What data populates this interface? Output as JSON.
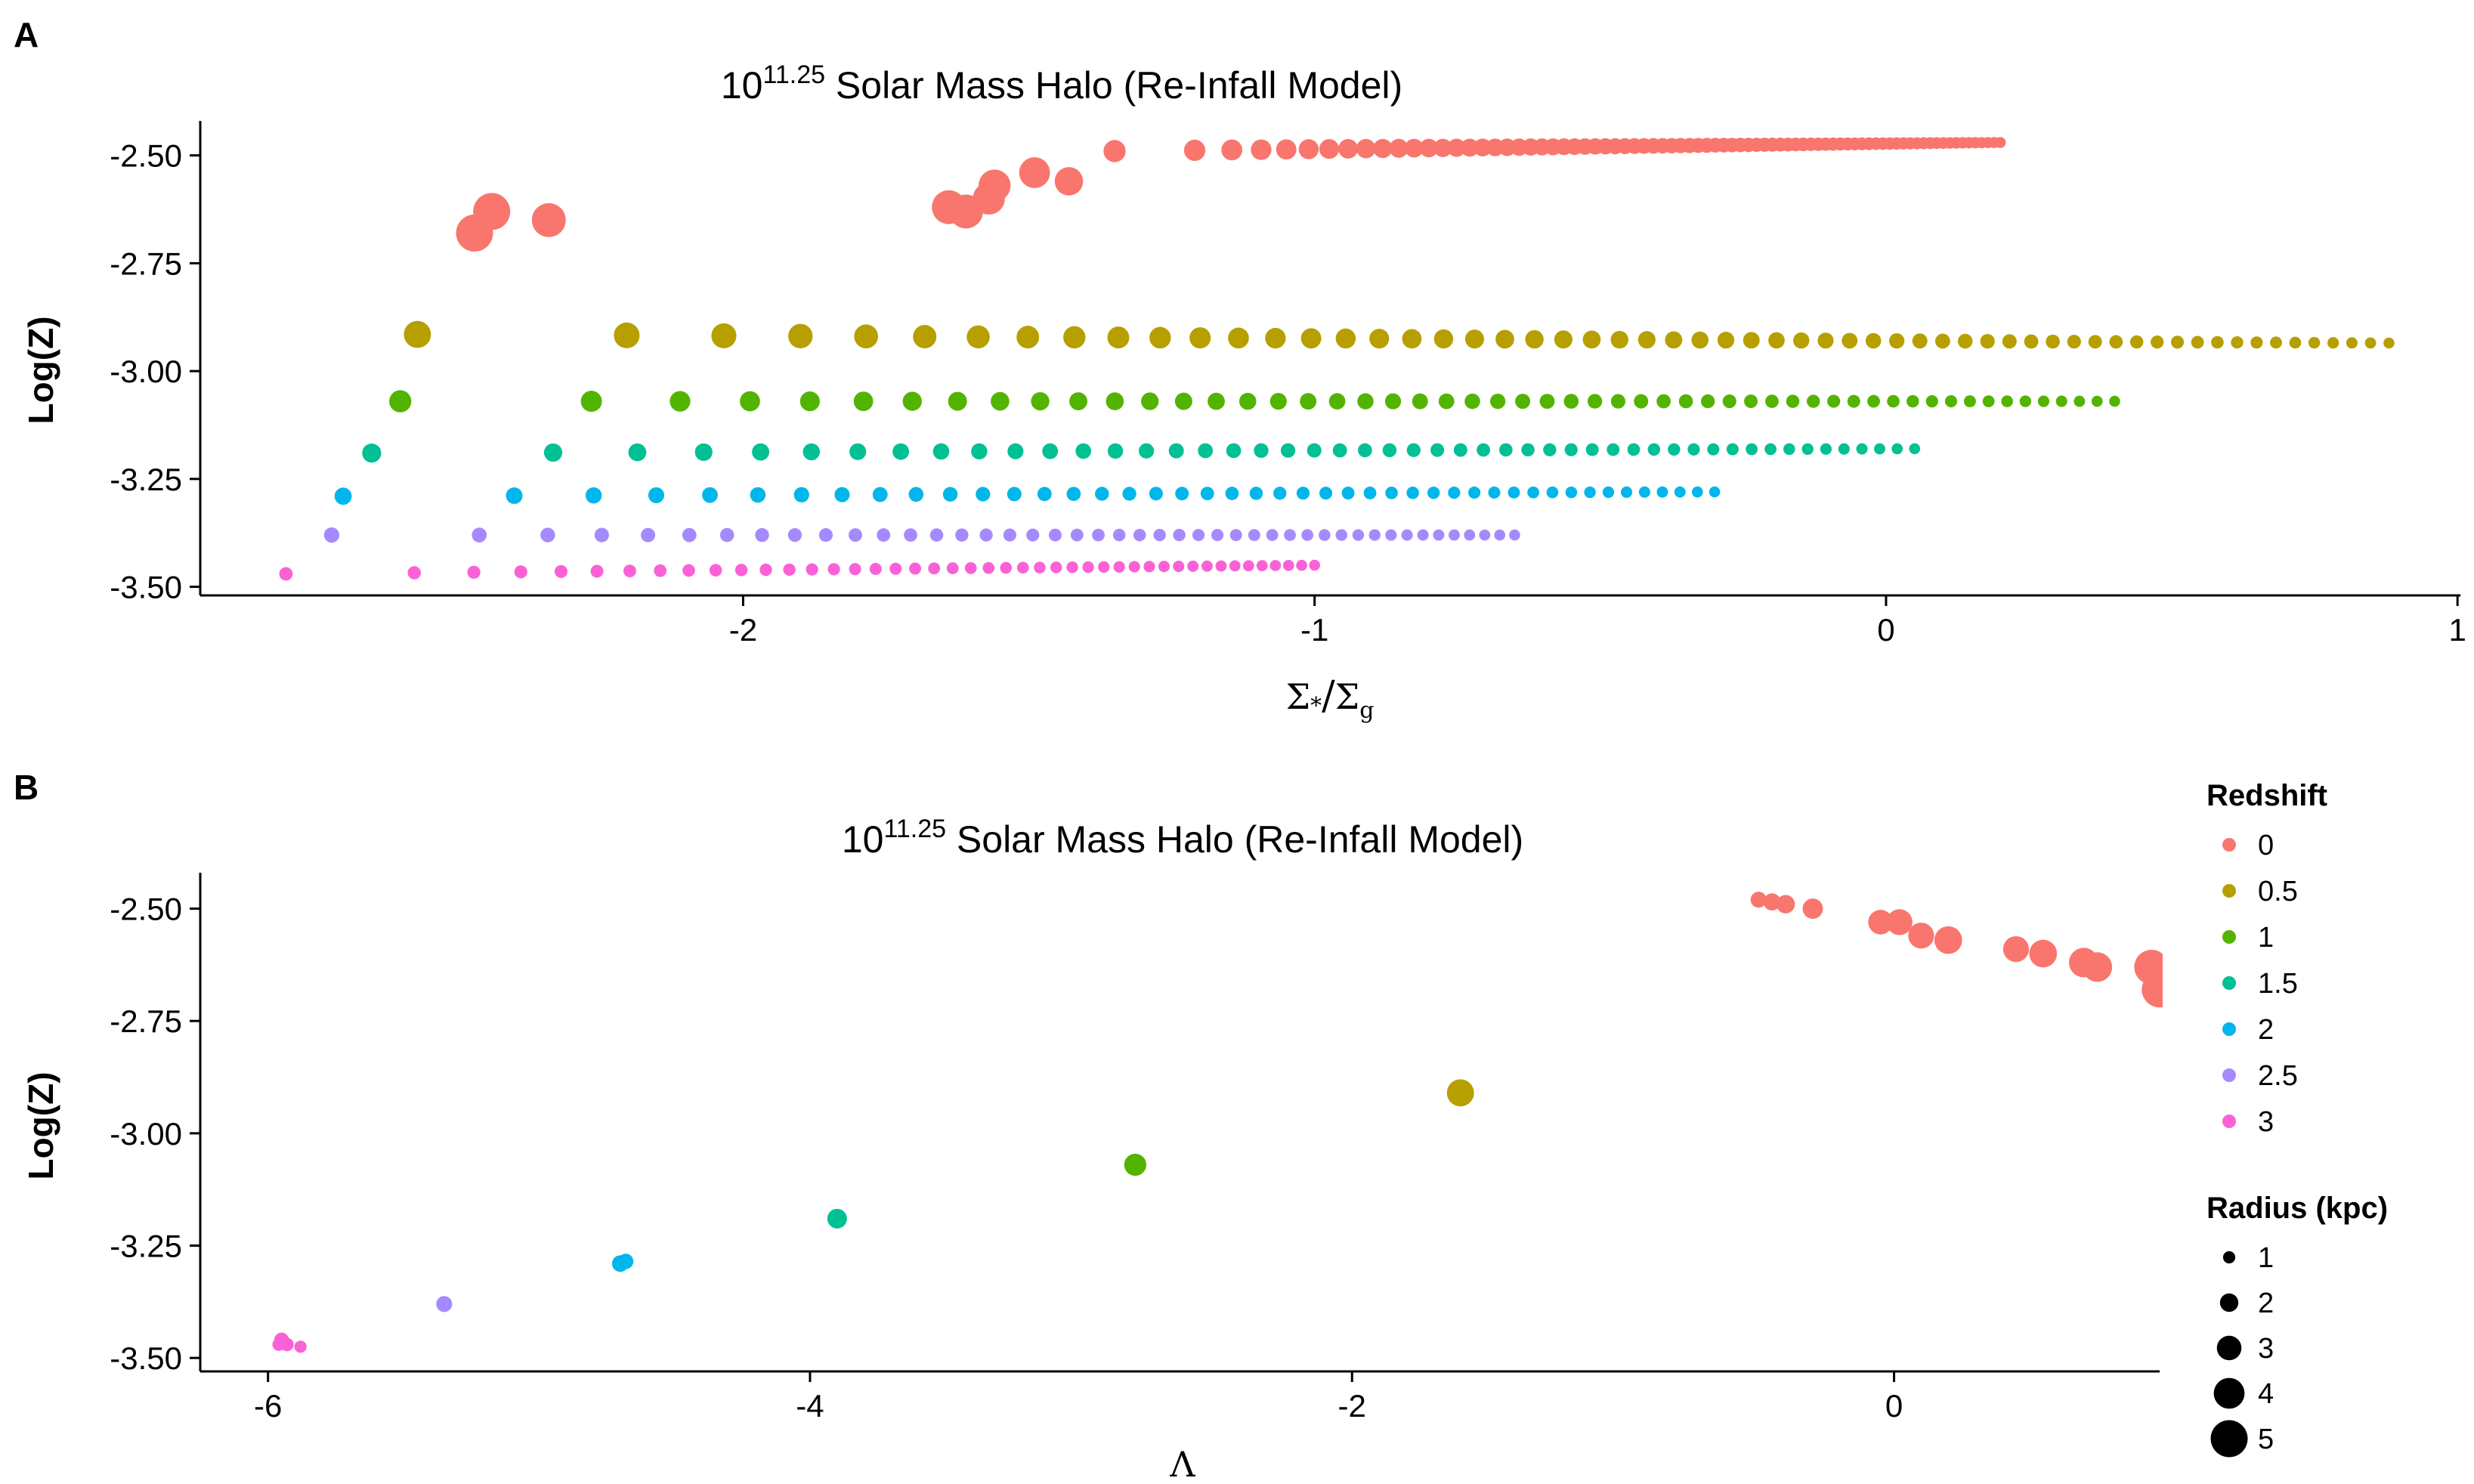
{
  "chart_data": [
    {
      "type": "scatter",
      "panel_label": "A",
      "title": "10^11.25 Solar Mass Halo (Re-Infall Model)",
      "title_base": "10",
      "title_exp": "11.25",
      "title_rest": " Solar Mass Halo (Re-Infall Model)",
      "ylabel": "Log(Z)",
      "xlabel": "Σ*/Σg",
      "xlabel_parts": {
        "sigma1": "Σ",
        "sub1": "*",
        "slash": "/",
        "sigma2": "Σ",
        "sub2": "g"
      },
      "xlim": [
        -2.95,
        1.05
      ],
      "ylim": [
        -3.52,
        -2.42
      ],
      "xticks": [
        -2,
        -1,
        0,
        1
      ],
      "yticks": [
        -2.5,
        -2.75,
        -3.0,
        -3.25,
        -3.5
      ],
      "xtick_labels": [
        "-2",
        "-1",
        "0",
        "1"
      ],
      "ytick_labels": [
        "-2.50",
        "-2.75",
        "-3.00",
        "-3.25",
        "-3.50"
      ],
      "series": [
        {
          "name": "0",
          "line": {
            "x_start": -1.35,
            "x_end": 0.2,
            "y_start": -2.49,
            "y_end": -2.47,
            "n": 80,
            "size_start": 2.6,
            "size_end": 0.8
          },
          "points": [
            [
              -2.47,
              -2.68,
              5
            ],
            [
              -2.44,
              -2.63,
              5
            ],
            [
              -2.34,
              -2.65,
              4.5
            ],
            [
              -1.64,
              -2.62,
              4.5
            ],
            [
              -1.61,
              -2.63,
              4.5
            ],
            [
              -1.57,
              -2.6,
              4.2
            ],
            [
              -1.56,
              -2.57,
              4.2
            ],
            [
              -1.49,
              -2.54,
              4
            ],
            [
              -1.43,
              -2.56,
              3.6
            ]
          ]
        },
        {
          "name": "0.5",
          "line": {
            "x_start": -2.57,
            "x_end": 0.88,
            "y_start": -2.915,
            "y_end": -2.935,
            "n": 60,
            "size_start": 3.4,
            "size_end": 0.8
          },
          "points": []
        },
        {
          "name": "1",
          "line": {
            "x_start": -2.6,
            "x_end": 0.4,
            "y_start": -3.07,
            "y_end": -3.07,
            "n": 55,
            "size_start": 2.6,
            "size_end": 0.8
          },
          "points": []
        },
        {
          "name": "1.5",
          "line": {
            "x_start": -2.65,
            "x_end": 0.05,
            "y_start": -3.19,
            "y_end": -3.18,
            "n": 50,
            "size_start": 2.1,
            "size_end": 0.8
          },
          "points": []
        },
        {
          "name": "2",
          "line": {
            "x_start": -2.7,
            "x_end": -0.3,
            "y_start": -3.29,
            "y_end": -3.28,
            "n": 45,
            "size_start": 1.8,
            "size_end": 0.8
          },
          "points": []
        },
        {
          "name": "2.5",
          "line": {
            "x_start": -2.72,
            "x_end": -0.65,
            "y_start": -3.38,
            "y_end": -3.38,
            "n": 45,
            "size_start": 1.5,
            "size_end": 0.8
          },
          "points": []
        },
        {
          "name": "3",
          "line": {
            "x_start": -2.8,
            "x_end": -1.0,
            "y_start": -3.47,
            "y_end": -3.45,
            "n": 45,
            "size_start": 1.2,
            "size_end": 0.8
          },
          "points": []
        }
      ]
    },
    {
      "type": "scatter",
      "panel_label": "B",
      "title": "10^11.25 Solar Mass Halo (Re-Infall Model)",
      "title_base": "10",
      "title_exp": "11.25",
      "title_rest": " Solar Mass Halo (Re-Infall Model)",
      "ylabel": "Log(Z)",
      "xlabel": "Λ",
      "xlim": [
        -6.25,
        0.98
      ],
      "ylim": [
        -3.53,
        -2.42
      ],
      "xticks": [
        -6,
        -4,
        -2,
        0
      ],
      "yticks": [
        -2.5,
        -2.75,
        -3.0,
        -3.25,
        -3.5
      ],
      "xtick_labels": [
        "-6",
        "-4",
        "-2",
        "0"
      ],
      "ytick_labels": [
        "-2.50",
        "-2.75",
        "-3.00",
        "-3.25",
        "-3.50"
      ],
      "series": [
        {
          "name": "0",
          "points": [
            [
              -0.5,
              -2.48,
              1.6
            ],
            [
              -0.45,
              -2.485,
              1.8
            ],
            [
              -0.4,
              -2.49,
              2.0
            ],
            [
              -0.3,
              -2.5,
              2.3
            ],
            [
              -0.05,
              -2.53,
              3.0
            ],
            [
              0.02,
              -2.53,
              3.2
            ],
            [
              0.1,
              -2.56,
              3.2
            ],
            [
              0.2,
              -2.57,
              3.5
            ],
            [
              0.45,
              -2.59,
              3.2
            ],
            [
              0.55,
              -2.6,
              3.5
            ],
            [
              0.7,
              -2.62,
              3.8
            ],
            [
              0.75,
              -2.63,
              3.8
            ],
            [
              0.95,
              -2.63,
              4.6
            ],
            [
              0.98,
              -2.68,
              4.8
            ]
          ]
        },
        {
          "name": "0.5",
          "points": [
            [
              -1.6,
              -2.91,
              3.4
            ]
          ]
        },
        {
          "name": "1",
          "points": [
            [
              -2.8,
              -3.07,
              2.6
            ]
          ]
        },
        {
          "name": "1.5",
          "points": [
            [
              -3.9,
              -3.19,
              2.2
            ]
          ]
        },
        {
          "name": "2",
          "points": [
            [
              -4.7,
              -3.29,
              1.7
            ],
            [
              -4.68,
              -3.285,
              1.5
            ]
          ]
        },
        {
          "name": "2.5",
          "points": [
            [
              -5.35,
              -3.38,
              1.6
            ]
          ]
        },
        {
          "name": "3",
          "points": [
            [
              -5.95,
              -3.46,
              1.4
            ],
            [
              -5.93,
              -3.47,
              1.2
            ],
            [
              -5.88,
              -3.475,
              1.0
            ],
            [
              -5.96,
              -3.47,
              1.1
            ]
          ]
        }
      ]
    }
  ],
  "colors": {
    "0": "#F8766D",
    "0.5": "#B79F00",
    "1": "#53B400",
    "1.5": "#00C094",
    "2": "#00B6EB",
    "2.5": "#A58AFF",
    "3": "#FB61D7"
  },
  "legend": {
    "redshift_title": "Redshift",
    "redshift_items": [
      "0",
      "0.5",
      "1",
      "1.5",
      "2",
      "2.5",
      "3"
    ],
    "radius_title": "Radius (kpc)",
    "radius_items": [
      "1",
      "2",
      "3",
      "4",
      "5"
    ]
  }
}
